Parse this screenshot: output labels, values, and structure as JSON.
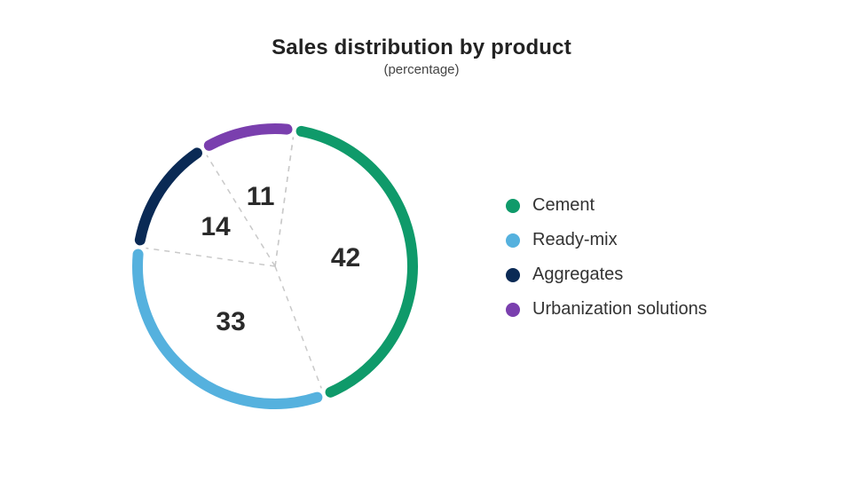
{
  "title": "Sales distribution by product",
  "subtitle": "(percentage)",
  "title_fontsize": 24,
  "subtitle_fontsize": 15,
  "background_color": "#ffffff",
  "chart": {
    "type": "pie",
    "outer_radius": 155,
    "inner_void_radius": 140,
    "stroke_width": 12,
    "gap_degrees": 6,
    "start_angle_deg": 8,
    "divider_dash": "6 6",
    "divider_color": "#c9c9c9",
    "divider_width": 1.5,
    "label_fontsize": 30,
    "label_fontweight": 800,
    "label_color": "#2a2a2a",
    "label_radius": 80,
    "slices": [
      {
        "label": "Cement",
        "value": 42,
        "color": "#0f9a6a"
      },
      {
        "label": "Ready-mix",
        "value": 33,
        "color": "#55b1de"
      },
      {
        "label": "Aggregates",
        "value": 14,
        "color": "#0a2a55"
      },
      {
        "label": "Urbanization solutions",
        "value": 11,
        "color": "#7a3fae"
      }
    ]
  },
  "legend": {
    "dot_size": 16,
    "label_fontsize": 20,
    "gap": 16
  }
}
